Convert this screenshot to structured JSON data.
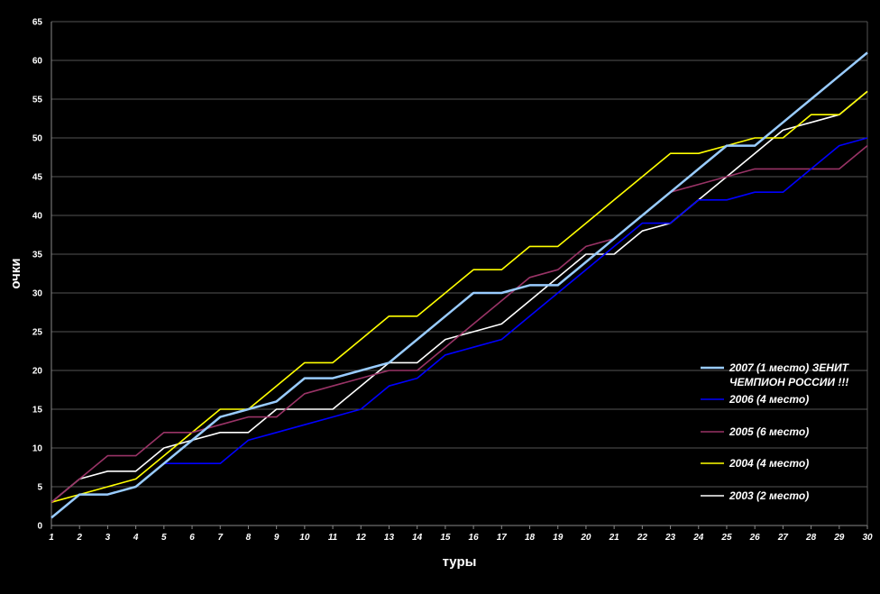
{
  "chart_data": {
    "type": "line",
    "title": "",
    "xlabel": "туры",
    "ylabel": "очки",
    "x": [
      1,
      2,
      3,
      4,
      5,
      6,
      7,
      8,
      9,
      10,
      11,
      12,
      13,
      14,
      15,
      16,
      17,
      18,
      19,
      20,
      21,
      22,
      23,
      24,
      25,
      26,
      27,
      28,
      29,
      30
    ],
    "xlim": [
      1,
      30
    ],
    "ylim": [
      0,
      65
    ],
    "ytick_step": 5,
    "grid": "horizontal",
    "legend_position": "right",
    "series": [
      {
        "name": "2007 (1 место) ЗЕНИТ",
        "name_line2": "ЧЕМПИОН РОССИИ !!!",
        "color": "#99CCFF",
        "values": [
          1,
          4,
          4,
          5,
          8,
          11,
          14,
          15,
          16,
          19,
          19,
          20,
          21,
          24,
          27,
          30,
          30,
          31,
          31,
          34,
          37,
          40,
          43,
          46,
          49,
          49,
          52,
          55,
          58,
          61
        ]
      },
      {
        "name": "2006 (4 место)",
        "color": "#0000FF",
        "values": [
          1,
          4,
          4,
          5,
          8,
          8,
          8,
          11,
          12,
          13,
          14,
          15,
          18,
          19,
          22,
          23,
          24,
          27,
          30,
          33,
          36,
          39,
          39,
          42,
          42,
          43,
          43,
          46,
          49,
          50
        ]
      },
      {
        "name": "2005 (6 место)",
        "color": "#993366",
        "values": [
          3,
          6,
          9,
          9,
          12,
          12,
          13,
          14,
          14,
          17,
          18,
          19,
          20,
          20,
          23,
          26,
          29,
          32,
          33,
          36,
          37,
          40,
          43,
          44,
          45,
          46,
          46,
          46,
          46,
          49
        ]
      },
      {
        "name": "2004 (4 место)",
        "color": "#FFFF00",
        "values": [
          3,
          4,
          5,
          6,
          9,
          12,
          15,
          15,
          18,
          21,
          21,
          24,
          27,
          27,
          30,
          33,
          33,
          36,
          36,
          39,
          42,
          45,
          48,
          48,
          49,
          50,
          50,
          53,
          53,
          56
        ]
      },
      {
        "name": "2003 (2 место)",
        "color": "#FFFFFF",
        "values": [
          3,
          6,
          7,
          7,
          10,
          11,
          12,
          12,
          15,
          15,
          15,
          18,
          21,
          21,
          24,
          25,
          26,
          29,
          32,
          35,
          35,
          38,
          39,
          42,
          45,
          48,
          51,
          52,
          53,
          56
        ]
      }
    ]
  }
}
